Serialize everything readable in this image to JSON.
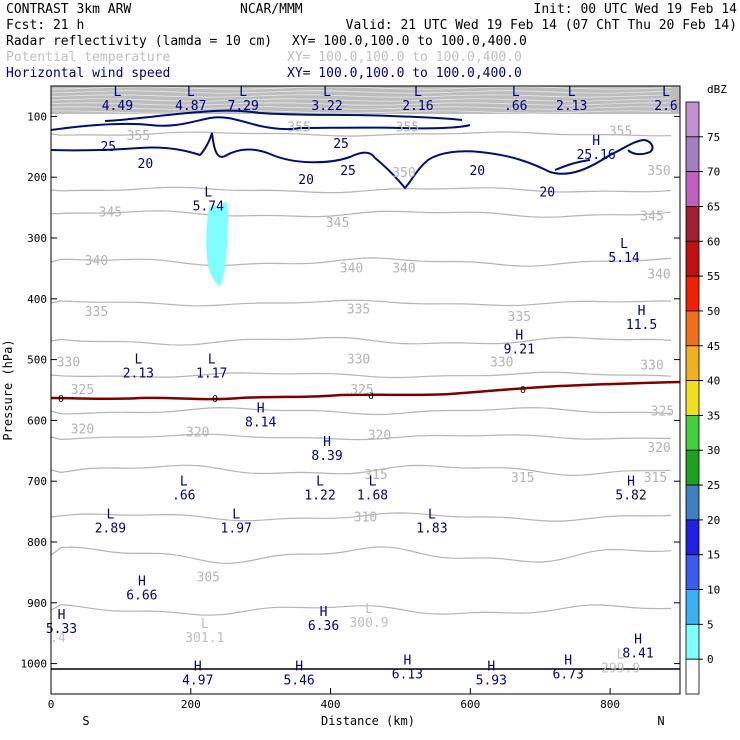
{
  "header": {
    "left1": "CONTRAST  3km ARW",
    "center1": "NCAR/MMM",
    "right1": "Init: 00 UTC Wed 19 Feb 14",
    "left2": "Fcst:   21 h",
    "right2": "Valid: 21 UTC Wed 19 Feb 14 (07 ChT Thu 20 Feb 14)",
    "fields": [
      {
        "name": "Radar reflectivity (lamda = 10 cm)",
        "xy": "XY= 100.0,100.0 to 100.0,400.0",
        "color": "#000000"
      },
      {
        "name": "Potential temperature",
        "xy": "XY= 100.0,100.0 to 100.0,400.0",
        "color": "#c0c0c0"
      },
      {
        "name": "Horizontal wind speed",
        "xy": "XY= 100.0,100.0 to 100.0,400.0",
        "color": "#000080"
      }
    ]
  },
  "chart_data": {
    "type": "contour",
    "xlabel": "Distance (km)",
    "ylabel": "Pressure (hPa)",
    "xlim": [
      0,
      900
    ],
    "ylim_hpa": [
      1050,
      50
    ],
    "x_ticks": [
      0,
      200,
      400,
      600,
      800
    ],
    "y_ticks": [
      100,
      200,
      300,
      400,
      500,
      600,
      700,
      800,
      900,
      1000
    ],
    "x_end_labels": {
      "left": "S",
      "right": "N"
    },
    "colorbar": {
      "unit": "dBZ",
      "levels": [
        "0",
        "5",
        "10",
        "15",
        "20",
        "25",
        "30",
        "35",
        "40",
        "45",
        "50",
        "55",
        "60",
        "65",
        "70",
        "75"
      ],
      "colors": [
        "#ffffff",
        "#80ffff",
        "#3ab0f0",
        "#3a5af0",
        "#2020e0",
        "#4080c0",
        "#20a020",
        "#40d040",
        "#f0e020",
        "#f0b020",
        "#f07020",
        "#f02000",
        "#c01010",
        "#a02030",
        "#c060c0",
        "#a080c0",
        "#c090d0"
      ]
    },
    "theta_labels": [
      {
        "t": "355",
        "x": 125,
        "p": 132
      },
      {
        "t": "355",
        "x": 355,
        "p": 118
      },
      {
        "t": "355",
        "x": 510,
        "p": 118
      },
      {
        "t": "355",
        "x": 815,
        "p": 125
      },
      {
        "t": "350",
        "x": 505,
        "p": 193
      },
      {
        "t": "350",
        "x": 870,
        "p": 190
      },
      {
        "t": "345",
        "x": 85,
        "p": 258
      },
      {
        "t": "345",
        "x": 410,
        "p": 275
      },
      {
        "t": "345",
        "x": 860,
        "p": 265
      },
      {
        "t": "340",
        "x": 65,
        "p": 338
      },
      {
        "t": "340",
        "x": 430,
        "p": 350
      },
      {
        "t": "340",
        "x": 505,
        "p": 350
      },
      {
        "t": "340",
        "x": 870,
        "p": 360
      },
      {
        "t": "335",
        "x": 65,
        "p": 422
      },
      {
        "t": "335",
        "x": 440,
        "p": 418
      },
      {
        "t": "335",
        "x": 670,
        "p": 430
      },
      {
        "t": "330",
        "x": 25,
        "p": 505
      },
      {
        "t": "330",
        "x": 440,
        "p": 500
      },
      {
        "t": "330",
        "x": 645,
        "p": 505
      },
      {
        "t": "330",
        "x": 860,
        "p": 510
      },
      {
        "t": "325",
        "x": 45,
        "p": 550
      },
      {
        "t": "325",
        "x": 445,
        "p": 550
      },
      {
        "t": "325",
        "x": 875,
        "p": 585
      },
      {
        "t": "320",
        "x": 45,
        "p": 615
      },
      {
        "t": "320",
        "x": 210,
        "p": 620
      },
      {
        "t": "320",
        "x": 470,
        "p": 625
      },
      {
        "t": "320",
        "x": 870,
        "p": 645
      },
      {
        "t": "315",
        "x": 465,
        "p": 690
      },
      {
        "t": "315",
        "x": 675,
        "p": 695
      },
      {
        "t": "315",
        "x": 865,
        "p": 695
      },
      {
        "t": "310",
        "x": 450,
        "p": 760
      },
      {
        "t": "305",
        "x": 225,
        "p": 858
      }
    ],
    "wind_labels": [
      {
        "t": "25",
        "x": 82,
        "p": 150
      },
      {
        "t": "20",
        "x": 135,
        "p": 178
      },
      {
        "t": "25",
        "x": 415,
        "p": 145
      },
      {
        "t": "25",
        "x": 425,
        "p": 190
      },
      {
        "t": "20",
        "x": 365,
        "p": 205
      },
      {
        "t": "20",
        "x": 610,
        "p": 190
      },
      {
        "t": "20",
        "x": 710,
        "p": 225
      }
    ],
    "theta_extrema": [
      {
        "k": "L",
        "v": "301.1",
        "x": 220,
        "p": 945
      },
      {
        "k": "L",
        "v": "300.9",
        "x": 455,
        "p": 920
      },
      {
        "k": "L",
        "v": "299.9",
        "x": 815,
        "p": 995
      },
      {
        "k": "",
        "v": ".4",
        "x": 10,
        "p": 945
      }
    ],
    "wind_extrema": [
      {
        "k": "L",
        "v": "4.49",
        "x": 95,
        "p": 70
      },
      {
        "k": "L",
        "v": "4.87",
        "x": 200,
        "p": 70
      },
      {
        "k": "L",
        "v": "7.29",
        "x": 275,
        "p": 70
      },
      {
        "k": "L",
        "v": "3.22",
        "x": 395,
        "p": 70
      },
      {
        "k": "L",
        "v": "2.16",
        "x": 525,
        "p": 70
      },
      {
        "k": "L",
        "v": ".66",
        "x": 665,
        "p": 70
      },
      {
        "k": "L",
        "v": "2.13",
        "x": 745,
        "p": 70
      },
      {
        "k": "L",
        "v": "2.6",
        "x": 880,
        "p": 70
      },
      {
        "k": "H",
        "v": "25.16",
        "x": 780,
        "p": 150
      },
      {
        "k": "L",
        "v": "5.74",
        "x": 225,
        "p": 235
      },
      {
        "k": "L",
        "v": "5.14",
        "x": 820,
        "p": 320
      },
      {
        "k": "H",
        "v": "11.5",
        "x": 845,
        "p": 430
      },
      {
        "k": "H",
        "v": "9.21",
        "x": 670,
        "p": 470
      },
      {
        "k": "L",
        "v": "2.13",
        "x": 125,
        "p": 510
      },
      {
        "k": "L",
        "v": "1.17",
        "x": 230,
        "p": 510
      },
      {
        "k": "H",
        "v": "8.14",
        "x": 300,
        "p": 590
      },
      {
        "k": "H",
        "v": "8.39",
        "x": 395,
        "p": 645
      },
      {
        "k": "L",
        "v": ".66",
        "x": 190,
        "p": 710
      },
      {
        "k": "L",
        "v": "1.22",
        "x": 385,
        "p": 710
      },
      {
        "k": "L",
        "v": "1.68",
        "x": 460,
        "p": 710
      },
      {
        "k": "H",
        "v": "5.82",
        "x": 830,
        "p": 710
      },
      {
        "k": "L",
        "v": "2.89",
        "x": 85,
        "p": 765
      },
      {
        "k": "L",
        "v": "1.97",
        "x": 265,
        "p": 765
      },
      {
        "k": "L",
        "v": "1.83",
        "x": 545,
        "p": 765
      },
      {
        "k": "H",
        "v": "6.66",
        "x": 130,
        "p": 875
      },
      {
        "k": "H",
        "v": "6.36",
        "x": 390,
        "p": 925
      },
      {
        "k": "H",
        "v": "5.33",
        "x": 15,
        "p": 930
      },
      {
        "k": "H",
        "v": "8.41",
        "x": 840,
        "p": 970
      },
      {
        "k": "H",
        "v": "4.97",
        "x": 210,
        "p": 1015
      },
      {
        "k": "H",
        "v": "5.46",
        "x": 355,
        "p": 1015
      },
      {
        "k": "H",
        "v": "6.13",
        "x": 510,
        "p": 1005
      },
      {
        "k": "H",
        "v": "5.93",
        "x": 630,
        "p": 1015
      },
      {
        "k": "H",
        "v": "6.73",
        "x": 740,
        "p": 1005
      }
    ],
    "zero_line_label": "0"
  }
}
